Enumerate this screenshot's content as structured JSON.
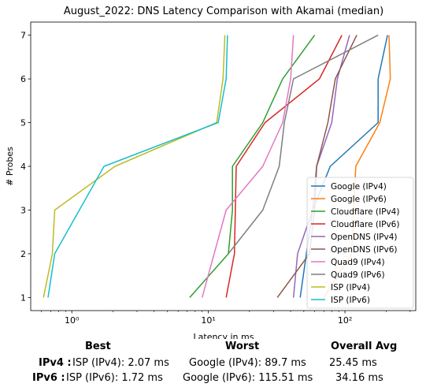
{
  "chart_data": {
    "type": "line",
    "title": "August_2022: DNS Latency Comparison with Akamai (median)",
    "xlabel": "Latency in ms",
    "ylabel": "# Probes",
    "x_scale": "log",
    "xlim": [
      0.5,
      330
    ],
    "ylim": [
      0.7,
      7.3
    ],
    "x_ticks": [
      {
        "value": 1,
        "label": "10⁰"
      },
      {
        "value": 10,
        "label": "10¹"
      },
      {
        "value": 100,
        "label": "10²"
      }
    ],
    "y_ticks": [
      1,
      2,
      3,
      4,
      5,
      6,
      7
    ],
    "grid": false,
    "legend_position": "lower right",
    "series": [
      {
        "name": "Google (IPv4)",
        "color": "#1f77b4",
        "x": [
          47,
          58,
          78,
          175,
          175,
          205
        ],
        "y": [
          1,
          3,
          4,
          5,
          6,
          7
        ]
      },
      {
        "name": "Google (IPv6)",
        "color": "#ff7f0e",
        "x": [
          70,
          112,
          120,
          180,
          215,
          210
        ],
        "y": [
          1,
          2,
          4,
          5,
          6,
          7
        ]
      },
      {
        "name": "Cloudflare (IPv4)",
        "color": "#2ca02c",
        "x": [
          7.3,
          14,
          15,
          15,
          25,
          35,
          60
        ],
        "y": [
          1,
          2,
          3,
          4,
          5,
          6,
          7
        ]
      },
      {
        "name": "Cloudflare (IPv6)",
        "color": "#d62728",
        "x": [
          13.5,
          15.5,
          16,
          26,
          65,
          95
        ],
        "y": [
          1,
          2,
          4,
          5,
          6,
          7
        ]
      },
      {
        "name": "OpenDNS (IPv4)",
        "color": "#9467bd",
        "x": [
          42,
          45,
          58,
          62,
          80,
          88,
          108
        ],
        "y": [
          1,
          2,
          3,
          4,
          5,
          6,
          7
        ]
      },
      {
        "name": "OpenDNS (IPv6)",
        "color": "#8c564b",
        "x": [
          32,
          55,
          60,
          62,
          75,
          85,
          122
        ],
        "y": [
          1,
          2,
          3,
          4,
          5,
          6,
          7
        ]
      },
      {
        "name": "Quad9 (IPv4)",
        "color": "#e377c2",
        "x": [
          9,
          13.5,
          25,
          35,
          40,
          42
        ],
        "y": [
          1,
          3,
          4,
          5,
          6,
          7
        ]
      },
      {
        "name": "Quad9 (IPv6)",
        "color": "#7f7f7f",
        "x": [
          14,
          25,
          33,
          36,
          42,
          175
        ],
        "y": [
          2,
          3,
          4,
          5,
          6,
          7
        ]
      },
      {
        "name": "ISP (IPv4)",
        "color": "#bcbd22",
        "x": [
          0.62,
          0.72,
          0.75,
          2.07,
          11.5,
          12.8,
          13.2
        ],
        "y": [
          1,
          2,
          3,
          4,
          5,
          6,
          7
        ]
      },
      {
        "name": "ISP (IPv6)",
        "color": "#17becf",
        "x": [
          0.67,
          0.75,
          1.72,
          11.8,
          13.5,
          13.8
        ],
        "y": [
          1,
          2,
          4,
          5,
          6,
          7
        ]
      }
    ]
  },
  "summary": {
    "headers": {
      "best": "Best",
      "worst": "Worst",
      "avg": "Overall Avg"
    },
    "rows": [
      {
        "label": "IPv4 :",
        "best": "ISP (IPv4): 2.07 ms",
        "worst": "Google (IPv4): 89.7 ms",
        "avg": "25.45 ms"
      },
      {
        "label": "IPv6 :",
        "best": "ISP (IPv6): 1.72 ms",
        "worst": "Google (IPv6): 115.51 ms",
        "avg": "34.16 ms"
      }
    ]
  }
}
